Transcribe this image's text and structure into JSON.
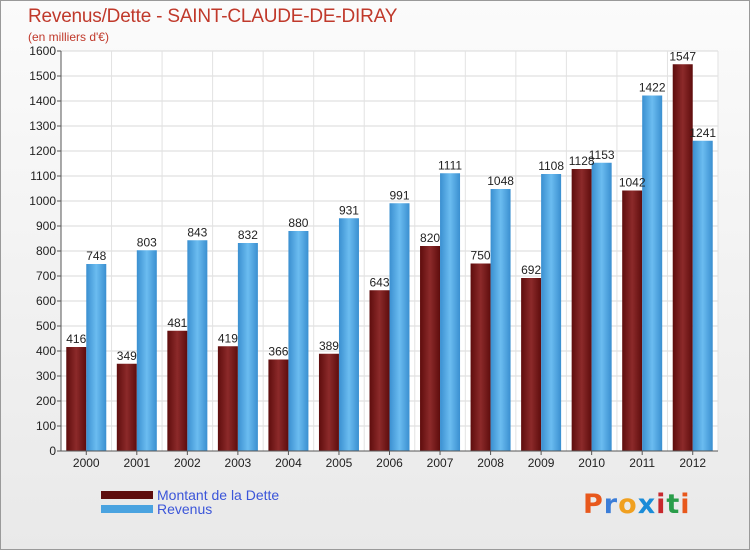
{
  "header": {
    "title": "Revenus/Dette - SAINT-CLAUDE-DE-DIRAY",
    "subtitle": "(en milliers d'€)"
  },
  "logo": {
    "chars": [
      "P",
      "r",
      "o",
      "x",
      "i",
      "t",
      "i"
    ],
    "colors": [
      "#e8581c",
      "#3b7dd8",
      "#f0a020",
      "#1a8cd8",
      "#c8282d",
      "#2a9d4a",
      "#e8581c"
    ]
  },
  "chart_data": {
    "type": "bar",
    "categories": [
      "2000",
      "2001",
      "2002",
      "2003",
      "2004",
      "2005",
      "2006",
      "2007",
      "2008",
      "2009",
      "2010",
      "2011",
      "2012"
    ],
    "series": [
      {
        "name": "Montant de la Dette",
        "values": [
          416,
          349,
          481,
          419,
          366,
          389,
          643,
          820,
          750,
          692,
          1128,
          1042,
          1547
        ],
        "color": "#7a1a1a"
      },
      {
        "name": "Revenus",
        "values": [
          748,
          803,
          843,
          832,
          880,
          931,
          991,
          1111,
          1048,
          1108,
          1153,
          1422,
          1241
        ],
        "color": "#4aa3e0"
      }
    ],
    "ylim": [
      0,
      1600
    ],
    "yticks": [
      0,
      100,
      200,
      300,
      400,
      500,
      600,
      700,
      800,
      900,
      1000,
      1100,
      1200,
      1300,
      1400,
      1500,
      1600
    ],
    "grid": true,
    "legend": "bottom-left"
  }
}
